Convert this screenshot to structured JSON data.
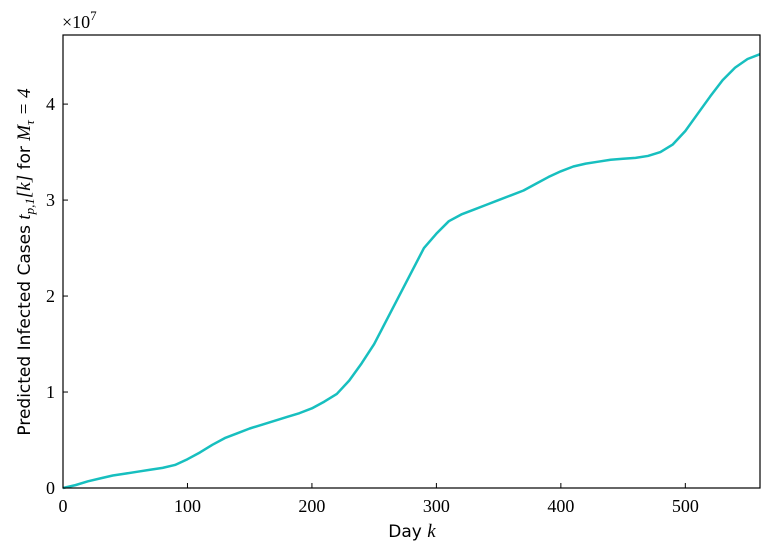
{
  "chart_data": {
    "type": "line",
    "ylabel_parts": [
      "Predicted Infected Cases ",
      "t",
      "p,1",
      "[",
      "k",
      "]",
      " for ",
      "M",
      "τ",
      " = 4"
    ],
    "xlabel_parts": [
      "Day ",
      "k"
    ],
    "offset_base": "×10",
    "offset_exponent": "7",
    "x": [
      0,
      10,
      20,
      30,
      40,
      50,
      60,
      70,
      80,
      90,
      100,
      110,
      120,
      130,
      140,
      150,
      160,
      170,
      180,
      190,
      200,
      210,
      220,
      230,
      240,
      250,
      260,
      270,
      280,
      290,
      300,
      310,
      320,
      330,
      340,
      350,
      360,
      370,
      380,
      390,
      400,
      410,
      420,
      430,
      440,
      450,
      460,
      470,
      480,
      490,
      500,
      510,
      520,
      530,
      540,
      550,
      560
    ],
    "series": [
      {
        "color": "#17bfbf",
        "values": [
          0,
          0.03,
          0.07,
          0.1,
          0.13,
          0.15,
          0.17,
          0.19,
          0.21,
          0.24,
          0.3,
          0.37,
          0.45,
          0.52,
          0.57,
          0.62,
          0.66,
          0.7,
          0.74,
          0.78,
          0.83,
          0.9,
          0.98,
          1.12,
          1.3,
          1.5,
          1.75,
          2.0,
          2.25,
          2.5,
          2.65,
          2.78,
          2.85,
          2.9,
          2.95,
          3.0,
          3.05,
          3.1,
          3.17,
          3.24,
          3.3,
          3.35,
          3.38,
          3.4,
          3.42,
          3.43,
          3.44,
          3.46,
          3.5,
          3.58,
          3.72,
          3.9,
          4.08,
          4.25,
          4.38,
          4.47,
          4.52
        ]
      }
    ],
    "xlim": [
      0,
      560
    ],
    "xticks": [
      0,
      100,
      200,
      300,
      400,
      500
    ],
    "ylim": [
      0,
      4.72
    ],
    "yticks": [
      0,
      1,
      2,
      3,
      4
    ]
  }
}
